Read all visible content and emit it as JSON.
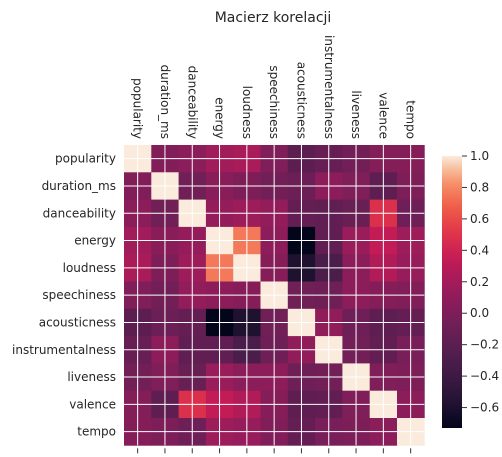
{
  "chart_data": {
    "type": "heatmap",
    "title": "Macierz korelacji",
    "labels": [
      "popularity",
      "duration_ms",
      "danceability",
      "energy",
      "loudness",
      "speechiness",
      "acousticness",
      "instrumentalness",
      "liveness",
      "valence",
      "tempo"
    ],
    "matrix": [
      [
        1.0,
        0.02,
        0.07,
        0.18,
        0.23,
        0.01,
        -0.2,
        -0.13,
        -0.06,
        0.03,
        0.04
      ],
      [
        0.02,
        1.0,
        -0.07,
        0.06,
        0.0,
        -0.06,
        -0.1,
        0.08,
        0.01,
        -0.18,
        0.0
      ],
      [
        0.07,
        -0.07,
        1.0,
        0.13,
        0.17,
        0.12,
        -0.14,
        -0.17,
        -0.12,
        0.48,
        -0.08
      ],
      [
        0.18,
        0.06,
        0.13,
        1.0,
        0.76,
        0.08,
        -0.73,
        -0.17,
        0.15,
        0.35,
        0.17
      ],
      [
        0.23,
        0.0,
        0.17,
        0.76,
        1.0,
        0.05,
        -0.58,
        -0.31,
        0.07,
        0.26,
        0.14
      ],
      [
        0.01,
        -0.06,
        0.12,
        0.08,
        0.05,
        1.0,
        -0.07,
        -0.09,
        0.08,
        0.04,
        0.02
      ],
      [
        -0.2,
        -0.1,
        -0.14,
        -0.73,
        -0.58,
        -0.07,
        1.0,
        0.1,
        -0.08,
        -0.18,
        -0.14
      ],
      [
        -0.13,
        0.08,
        -0.17,
        -0.17,
        -0.31,
        -0.09,
        0.1,
        1.0,
        -0.06,
        -0.16,
        -0.03
      ],
      [
        -0.06,
        0.01,
        -0.12,
        0.15,
        0.07,
        0.08,
        -0.08,
        -0.06,
        1.0,
        0.01,
        0.0
      ],
      [
        0.03,
        -0.18,
        0.48,
        0.35,
        0.26,
        0.04,
        -0.18,
        -0.16,
        0.01,
        1.0,
        0.07
      ],
      [
        0.04,
        0.0,
        -0.08,
        0.17,
        0.14,
        0.02,
        -0.14,
        -0.03,
        0.0,
        0.07,
        1.0
      ]
    ],
    "colormap": "rocket",
    "vmin": -0.73,
    "vmax": 1.0,
    "colorbar_ticks": [
      "−0.6",
      "−0.4",
      "−0.2",
      "0.0",
      "0.2",
      "0.4",
      "0.6",
      "0.8",
      "1.0"
    ],
    "colorbar_tick_values": [
      -0.6,
      -0.4,
      -0.2,
      0.0,
      0.2,
      0.4,
      0.6,
      0.8,
      1.0
    ],
    "grid": true
  }
}
